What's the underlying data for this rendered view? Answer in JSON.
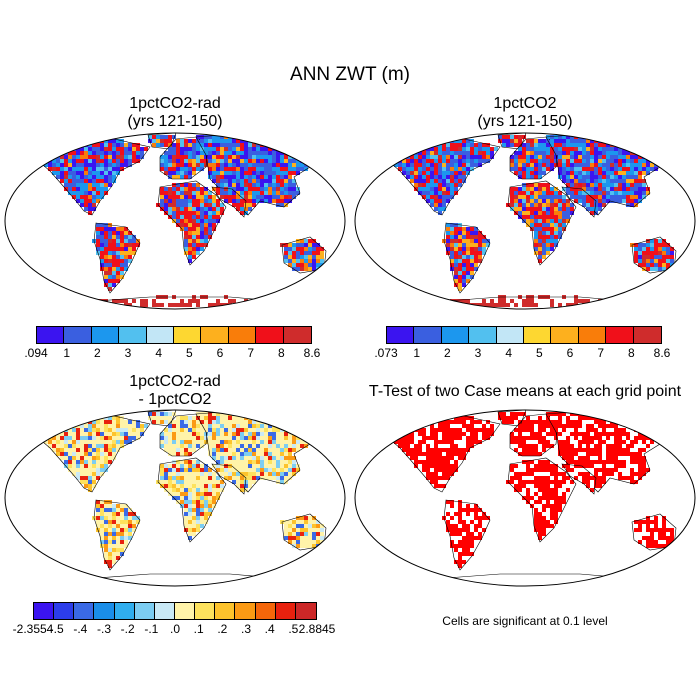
{
  "title": "ANN ZWT (m)",
  "panels": [
    {
      "id": "p1",
      "title_line1": "1pctCO2-rad",
      "title_line2": "(yrs 121-150)",
      "kind": "mean"
    },
    {
      "id": "p2",
      "title_line1": "1pctCO2",
      "title_line2": "(yrs 121-150)",
      "kind": "mean"
    },
    {
      "id": "p3",
      "title_line1": "1pctCO2-rad",
      "title_line2": "- 1pctCO2",
      "kind": "diff"
    },
    {
      "id": "p4",
      "title_line1": "T-Test of two Case means at each grid point",
      "title_line2": "",
      "kind": "ttest"
    }
  ],
  "note": "Cells are significant at 0.1 level",
  "colorbars": {
    "cb1": {
      "colors": [
        "#3b14f0",
        "#3a5fe0",
        "#1c97ee",
        "#52c0ef",
        "#c2e6f6",
        "#fdd731",
        "#fdb01e",
        "#f97d0a",
        "#f0101a",
        "#cf2c2c"
      ],
      "labels": [
        ".094",
        "1",
        "2",
        "3",
        "4",
        "5",
        "6",
        "7",
        "8",
        "8.6"
      ]
    },
    "cb2": {
      "colors": [
        "#3b14f0",
        "#3a5fe0",
        "#1c97ee",
        "#52c0ef",
        "#c2e6f6",
        "#fdd731",
        "#fdb01e",
        "#f97d0a",
        "#f0101a",
        "#cf2c2c"
      ],
      "labels": [
        ".073",
        "1",
        "2",
        "3",
        "4",
        "5",
        "6",
        "7",
        "8",
        "8.6"
      ]
    },
    "cb3": {
      "colors": [
        "#3b14f0",
        "#2c3dea",
        "#3a6ae6",
        "#1a8ee9",
        "#30aeee",
        "#7ccdf2",
        "#c9e9f6",
        "#fff3a9",
        "#fde25d",
        "#fdc32c",
        "#fb9a14",
        "#f5660a",
        "#e8210e",
        "#cc2727"
      ],
      "labels": [
        "-2.3554",
        "-.5",
        "-.4",
        "-.3",
        "-.2",
        "-.1",
        ".0",
        ".1",
        ".2",
        ".3",
        ".4",
        ".5",
        "2.8845"
      ]
    }
  },
  "map_palettes": {
    "mean": [
      "#f0101a",
      "#cf2c2c",
      "#f97d0a",
      "#f0101a",
      "#3b14f0",
      "#3a5fe0",
      "#1c97ee",
      "#f0101a",
      "#fdb01e",
      "#3a5fe0",
      "#52c0ef",
      "#f0101a"
    ],
    "diff": [
      "#fff3a9",
      "#fff3a9",
      "#fde25d",
      "#fff3a9",
      "#c9e9f6",
      "#fdc32c",
      "#fff3a9",
      "#fb9a14",
      "#7ccdf2",
      "#fff3a9",
      "#e8210e",
      "#3a6ae6"
    ],
    "ttest": [
      "#ff0000",
      "#ff0000",
      "#ffffff",
      "#ff0000",
      "#ff0000",
      "#ffffff",
      "#ff0000"
    ]
  }
}
